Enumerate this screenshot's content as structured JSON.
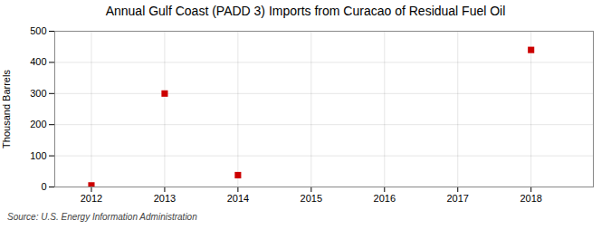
{
  "chart_data": {
    "type": "scatter",
    "title": "Annual Gulf Coast (PADD 3) Imports from Curacao of Residual Fuel Oil",
    "ylabel": "Thousand Barrels",
    "source": "Source: U.S. Energy Information Administration",
    "x": [
      2012,
      2013,
      2014,
      2018
    ],
    "values": [
      5,
      300,
      38,
      440
    ],
    "color": "#cc0000",
    "marker": "square",
    "xlim": [
      2011.5,
      2018.85
    ],
    "ylim": [
      0,
      500
    ],
    "xticks": [
      2012,
      2013,
      2014,
      2015,
      2016,
      2017,
      2018
    ],
    "yticks": [
      0,
      100,
      200,
      300,
      400,
      500
    ],
    "grid": true
  }
}
